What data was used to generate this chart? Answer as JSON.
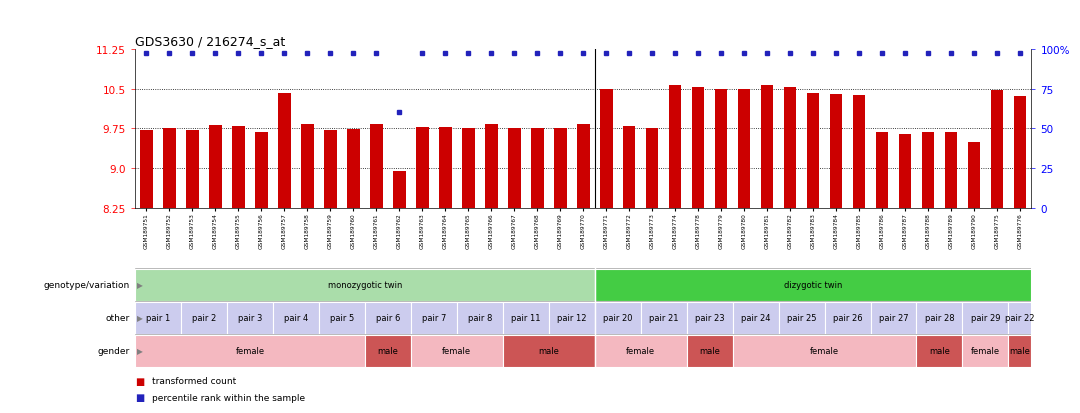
{
  "title": "GDS3630 / 216274_s_at",
  "ylim_left": [
    8.25,
    11.25
  ],
  "yticks_left": [
    8.25,
    9.0,
    9.75,
    10.5,
    11.25
  ],
  "ytick_labels_right": [
    "0",
    "25",
    "50",
    "75",
    "100%"
  ],
  "yticks_right": [
    0,
    25,
    50,
    75,
    100
  ],
  "samples": [
    "GSM189751",
    "GSM189752",
    "GSM189753",
    "GSM189754",
    "GSM189755",
    "GSM189756",
    "GSM189757",
    "GSM189758",
    "GSM189759",
    "GSM189760",
    "GSM189761",
    "GSM189762",
    "GSM189763",
    "GSM189764",
    "GSM189765",
    "GSM189766",
    "GSM189767",
    "GSM189768",
    "GSM189769",
    "GSM189770",
    "GSM189771",
    "GSM189772",
    "GSM189773",
    "GSM189774",
    "GSM189778",
    "GSM189779",
    "GSM189780",
    "GSM189781",
    "GSM189782",
    "GSM189783",
    "GSM189784",
    "GSM189785",
    "GSM189786",
    "GSM189787",
    "GSM189788",
    "GSM189789",
    "GSM189790",
    "GSM189775",
    "GSM189776"
  ],
  "bar_values": [
    9.72,
    9.75,
    9.72,
    9.82,
    9.8,
    9.68,
    10.42,
    9.83,
    9.72,
    9.73,
    9.83,
    8.95,
    9.78,
    9.78,
    9.75,
    9.83,
    9.75,
    9.75,
    9.75,
    9.83,
    10.5,
    9.8,
    9.75,
    10.57,
    10.52,
    10.5,
    10.49,
    10.57,
    10.53,
    10.42,
    10.4,
    10.38,
    9.68,
    9.65,
    9.68,
    9.68,
    9.5,
    10.48,
    10.35
  ],
  "percentile_values": [
    97,
    97,
    97,
    97,
    97,
    97,
    97,
    97,
    97,
    97,
    97,
    60,
    97,
    97,
    97,
    97,
    97,
    97,
    97,
    97,
    97,
    97,
    97,
    97,
    97,
    97,
    97,
    97,
    97,
    97,
    97,
    97,
    97,
    97,
    97,
    97,
    97,
    97,
    97
  ],
  "bar_color": "#cc0000",
  "percentile_color": "#2222bb",
  "background_color": "#ffffff",
  "genotype_rows": [
    {
      "label": "monozygotic twin",
      "start": 0,
      "end": 19,
      "color": "#aaddaa"
    },
    {
      "label": "dizygotic twin",
      "start": 20,
      "end": 38,
      "color": "#44cc44"
    }
  ],
  "pair_rows": [
    {
      "label": "pair 1",
      "start": 0,
      "end": 1,
      "color": "#ccccee"
    },
    {
      "label": "pair 2",
      "start": 2,
      "end": 3,
      "color": "#ccccee"
    },
    {
      "label": "pair 3",
      "start": 4,
      "end": 5,
      "color": "#ccccee"
    },
    {
      "label": "pair 4",
      "start": 6,
      "end": 7,
      "color": "#ccccee"
    },
    {
      "label": "pair 5",
      "start": 8,
      "end": 9,
      "color": "#ccccee"
    },
    {
      "label": "pair 6",
      "start": 10,
      "end": 11,
      "color": "#ccccee"
    },
    {
      "label": "pair 7",
      "start": 12,
      "end": 13,
      "color": "#ccccee"
    },
    {
      "label": "pair 8",
      "start": 14,
      "end": 15,
      "color": "#ccccee"
    },
    {
      "label": "pair 11",
      "start": 16,
      "end": 17,
      "color": "#ccccee"
    },
    {
      "label": "pair 12",
      "start": 18,
      "end": 19,
      "color": "#ccccee"
    },
    {
      "label": "pair 20",
      "start": 20,
      "end": 21,
      "color": "#ccccee"
    },
    {
      "label": "pair 21",
      "start": 22,
      "end": 23,
      "color": "#ccccee"
    },
    {
      "label": "pair 23",
      "start": 24,
      "end": 25,
      "color": "#ccccee"
    },
    {
      "label": "pair 24",
      "start": 26,
      "end": 27,
      "color": "#ccccee"
    },
    {
      "label": "pair 25",
      "start": 28,
      "end": 29,
      "color": "#ccccee"
    },
    {
      "label": "pair 26",
      "start": 30,
      "end": 31,
      "color": "#ccccee"
    },
    {
      "label": "pair 27",
      "start": 32,
      "end": 33,
      "color": "#ccccee"
    },
    {
      "label": "pair 28",
      "start": 34,
      "end": 35,
      "color": "#ccccee"
    },
    {
      "label": "pair 29",
      "start": 36,
      "end": 37,
      "color": "#ccccee"
    },
    {
      "label": "pair 22",
      "start": 38,
      "end": 38,
      "color": "#ccccee"
    }
  ],
  "gender_rows": [
    {
      "label": "female",
      "start": 0,
      "end": 9,
      "color": "#f4b8c0"
    },
    {
      "label": "male",
      "start": 10,
      "end": 11,
      "color": "#cc5555"
    },
    {
      "label": "female",
      "start": 12,
      "end": 15,
      "color": "#f4b8c0"
    },
    {
      "label": "male",
      "start": 16,
      "end": 19,
      "color": "#cc5555"
    },
    {
      "label": "female",
      "start": 20,
      "end": 23,
      "color": "#f4b8c0"
    },
    {
      "label": "male",
      "start": 24,
      "end": 25,
      "color": "#cc5555"
    },
    {
      "label": "female",
      "start": 26,
      "end": 33,
      "color": "#f4b8c0"
    },
    {
      "label": "male",
      "start": 34,
      "end": 35,
      "color": "#cc5555"
    },
    {
      "label": "female",
      "start": 36,
      "end": 37,
      "color": "#f4b8c0"
    },
    {
      "label": "male",
      "start": 38,
      "end": 38,
      "color": "#cc5555"
    }
  ],
  "row_labels": [
    "genotype/variation",
    "other",
    "gender"
  ]
}
